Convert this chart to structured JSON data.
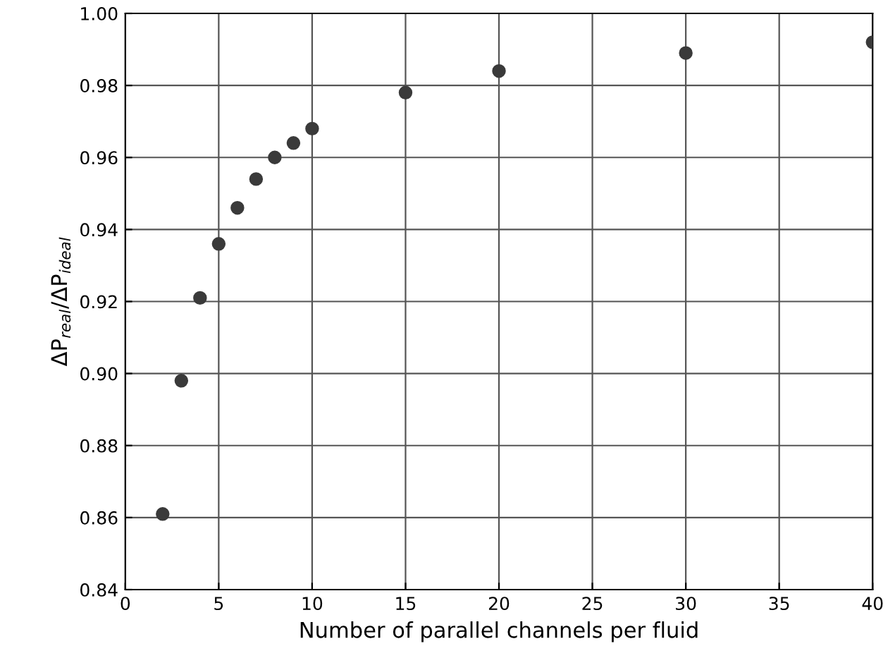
{
  "chart_data": {
    "type": "scatter",
    "xlabel": "Number of parallel channels per fluid",
    "ylabel": "ΔP$_{real}$/ΔP$_{ideal}$",
    "x": [
      2,
      3,
      4,
      5,
      6,
      7,
      8,
      9,
      10,
      15,
      20,
      30,
      40
    ],
    "values": [
      0.861,
      0.898,
      0.921,
      0.936,
      0.946,
      0.954,
      0.96,
      0.964,
      0.968,
      0.978,
      0.984,
      0.989,
      0.992
    ],
    "color": "#3a3a3a",
    "marker": "circle",
    "grid": true,
    "xlim": [
      0,
      40
    ],
    "xticks": [
      0,
      5,
      10,
      15,
      20,
      25,
      30,
      35,
      40
    ],
    "ylim": [
      0.84,
      1.0
    ],
    "yticks": [
      {
        "value": 0.84,
        "label": "0.84"
      },
      {
        "value": 0.86,
        "label": "0.86"
      },
      {
        "value": 0.88,
        "label": "0.88"
      },
      {
        "value": 0.9,
        "label": "0.90"
      },
      {
        "value": 0.92,
        "label": "0.92"
      },
      {
        "value": 0.94,
        "label": "0.94"
      },
      {
        "value": 0.96,
        "label": "0.96"
      },
      {
        "value": 0.98,
        "label": "0.98"
      },
      {
        "value": 1.0,
        "label": "1.00"
      }
    ]
  }
}
